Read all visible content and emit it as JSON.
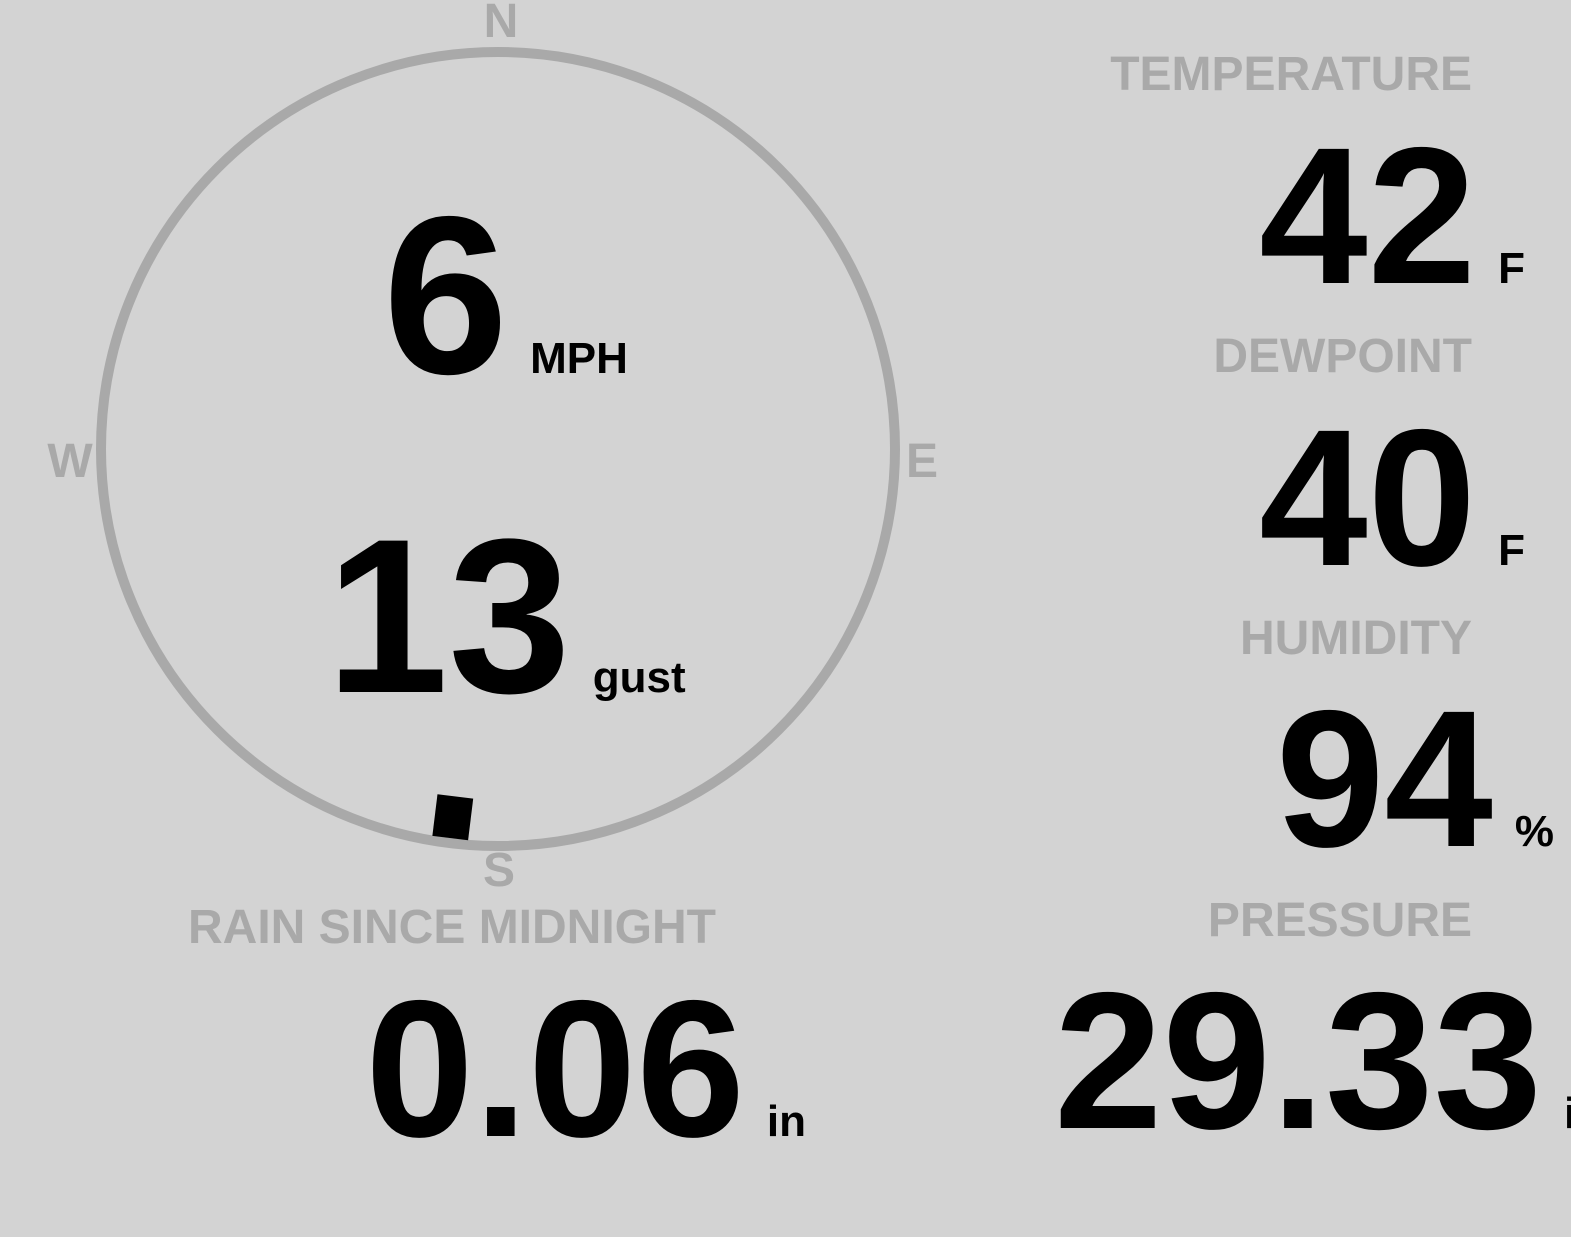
{
  "colors": {
    "background": "#d3d3d3",
    "muted": "#a9a9a9",
    "value": "#000000"
  },
  "compass": {
    "north": "N",
    "east": "E",
    "south": "S",
    "west": "W",
    "wind_direction_deg": 187
  },
  "wind": {
    "speed": "6",
    "speed_unit": "MPH",
    "gust": "13",
    "gust_label": "gust"
  },
  "temperature": {
    "label": "TEMPERATURE",
    "value": "42",
    "unit": "F"
  },
  "dewpoint": {
    "label": "DEWPOINT",
    "value": "40",
    "unit": "F"
  },
  "humidity": {
    "label": "HUMIDITY",
    "value": "94",
    "unit": "%"
  },
  "rain": {
    "label": "RAIN SINCE MIDNIGHT",
    "value": "0.06",
    "unit": "in"
  },
  "pressure": {
    "label": "PRESSURE",
    "value": "29.33",
    "unit": "in"
  }
}
